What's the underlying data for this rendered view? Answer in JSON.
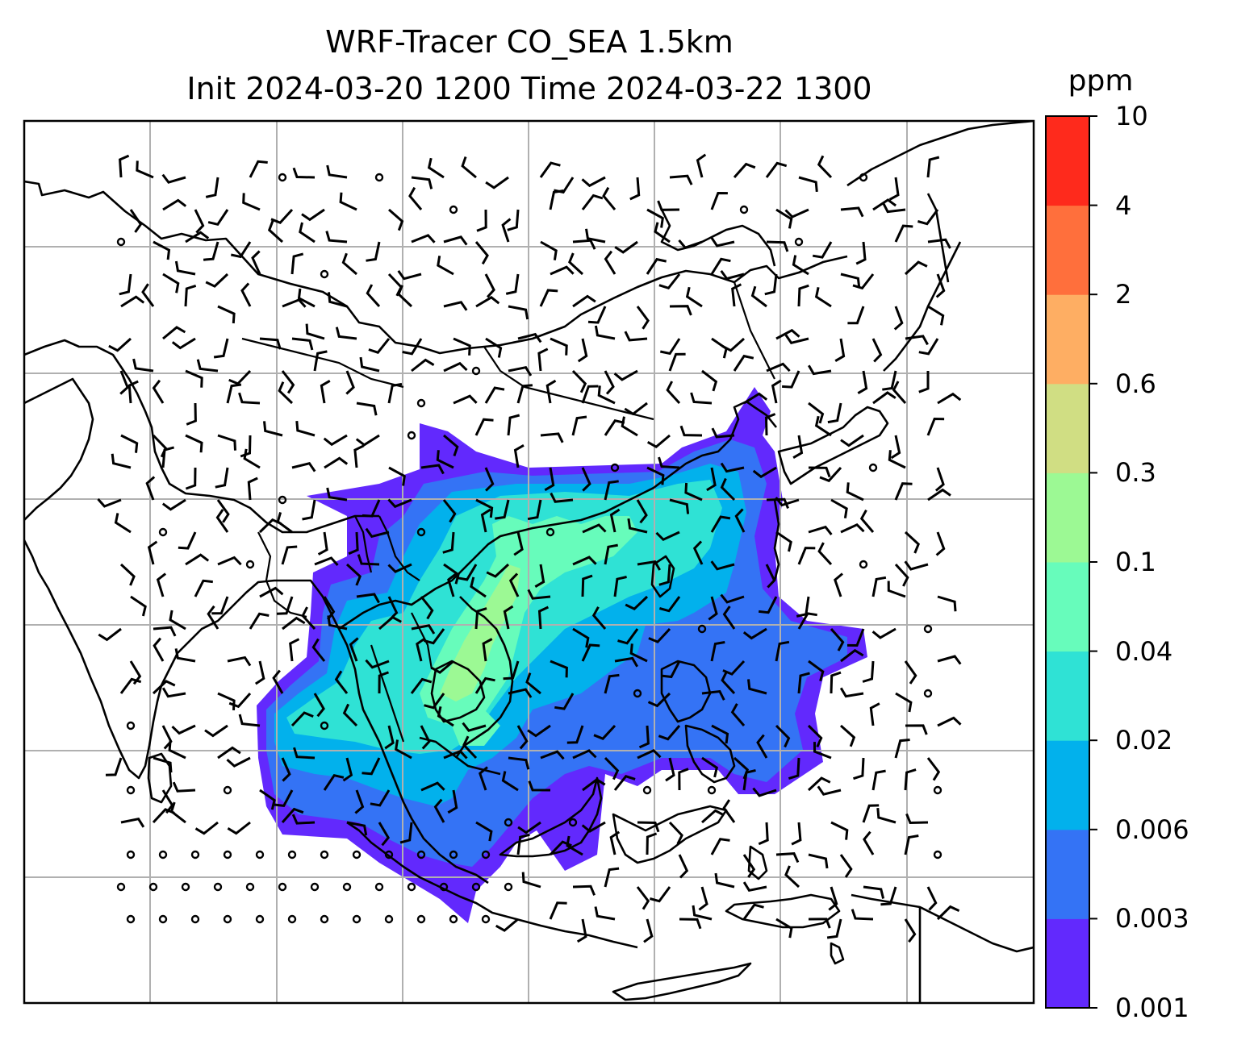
{
  "title": {
    "line1": "WRF-Tracer CO_SEA 1.5km",
    "line2": "Init 2024-03-20 1200 Time 2024-03-22 1300"
  },
  "colorbar": {
    "unit": "ppm",
    "ticks": [
      "0.001",
      "0.003",
      "0.006",
      "0.02",
      "0.04",
      "0.1",
      "0.3",
      "0.6",
      "2",
      "4",
      "10"
    ],
    "colors": [
      "#6229fd",
      "#3473f5",
      "#02b1ec",
      "#2fe2d5",
      "#67fcbb",
      "#9cf994",
      "#d0de83",
      "#feae63",
      "#ff6f3c",
      "#fe2a1c"
    ]
  },
  "map": {
    "gridlines": true,
    "features": [
      "coastlines",
      "country borders",
      "wind barbs",
      "tracer concentration shading"
    ]
  }
}
